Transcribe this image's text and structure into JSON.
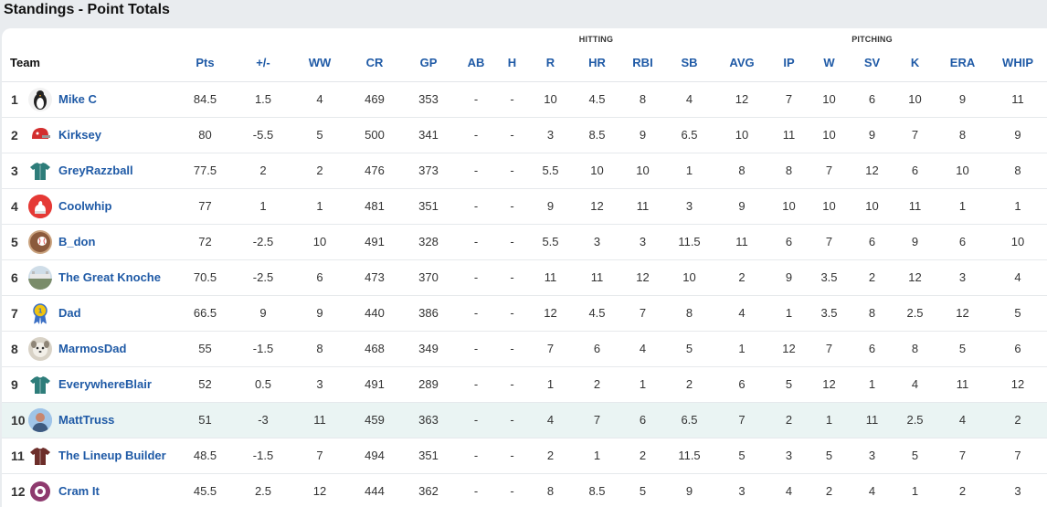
{
  "page": {
    "title": "Standings - Point Totals"
  },
  "groups": {
    "hitting": "HITTING",
    "pitching": "PITCHING"
  },
  "columns": [
    "Team",
    "Pts",
    "+/-",
    "WW",
    "CR",
    "GP",
    "AB",
    "H",
    "R",
    "HR",
    "RBI",
    "SB",
    "AVG",
    "IP",
    "W",
    "SV",
    "K",
    "ERA",
    "WHIP"
  ],
  "rows": [
    {
      "rank": "1",
      "team": "Mike C",
      "logo": "penguin-icon",
      "colors": [
        "#f2f2f2",
        "#222222"
      ],
      "pts": "84.5",
      "delta": "1.5",
      "dir": "pos",
      "ww": "4",
      "cr": "469",
      "gp": "353",
      "ab": "-",
      "h": "-",
      "r": "10",
      "hr": "4.5",
      "rbi": "8",
      "sb": "4",
      "avg": "12",
      "ip": "7",
      "w": "10",
      "sv": "6",
      "k": "10",
      "era": "9",
      "whip": "11"
    },
    {
      "rank": "2",
      "team": "Kirksey",
      "logo": "helmet-icon",
      "colors": [
        "#ffffff",
        "#d32f2f"
      ],
      "pts": "80",
      "delta": "-5.5",
      "dir": "neg",
      "ww": "5",
      "cr": "500",
      "gp": "341",
      "ab": "-",
      "h": "-",
      "r": "3",
      "hr": "8.5",
      "rbi": "9",
      "sb": "6.5",
      "avg": "10",
      "ip": "11",
      "w": "10",
      "sv": "9",
      "k": "7",
      "era": "8",
      "whip": "9"
    },
    {
      "rank": "3",
      "team": "GreyRazzball",
      "logo": "jersey-icon",
      "colors": [
        "#ffffff",
        "#2e7d7a"
      ],
      "pts": "77.5",
      "delta": "2",
      "dir": "pos",
      "ww": "2",
      "cr": "476",
      "gp": "373",
      "ab": "-",
      "h": "-",
      "r": "5.5",
      "hr": "10",
      "rbi": "10",
      "sb": "1",
      "avg": "8",
      "ip": "8",
      "w": "7",
      "sv": "12",
      "k": "6",
      "era": "10",
      "whip": "8"
    },
    {
      "rank": "4",
      "team": "Coolwhip",
      "logo": "whip-icon",
      "colors": [
        "#e53935",
        "#ffffff"
      ],
      "pts": "77",
      "delta": "1",
      "dir": "pos",
      "ww": "1",
      "cr": "481",
      "gp": "351",
      "ab": "-",
      "h": "-",
      "r": "9",
      "hr": "12",
      "rbi": "11",
      "sb": "3",
      "avg": "9",
      "ip": "10",
      "w": "10",
      "sv": "10",
      "k": "11",
      "era": "1",
      "whip": "1"
    },
    {
      "rank": "5",
      "team": "B_don",
      "logo": "baseball-glove-icon",
      "colors": [
        "#c9a27e",
        "#8b5a3c"
      ],
      "pts": "72",
      "delta": "-2.5",
      "dir": "neg",
      "ww": "10",
      "cr": "491",
      "gp": "328",
      "ab": "-",
      "h": "-",
      "r": "5.5",
      "hr": "3",
      "rbi": "3",
      "sb": "11.5",
      "avg": "11",
      "ip": "6",
      "w": "7",
      "sv": "6",
      "k": "9",
      "era": "6",
      "whip": "10"
    },
    {
      "rank": "6",
      "team": "The Great Knoche",
      "logo": "stadium-icon",
      "colors": [
        "#cfdde8",
        "#7a8c6a"
      ],
      "pts": "70.5",
      "delta": "-2.5",
      "dir": "neg",
      "ww": "6",
      "cr": "473",
      "gp": "370",
      "ab": "-",
      "h": "-",
      "r": "11",
      "hr": "11",
      "rbi": "12",
      "sb": "10",
      "avg": "2",
      "ip": "9",
      "w": "3.5",
      "sv": "2",
      "k": "12",
      "era": "3",
      "whip": "4"
    },
    {
      "rank": "7",
      "team": "Dad",
      "logo": "award-ribbon-icon",
      "colors": [
        "#ffffff",
        "#3b6fc4"
      ],
      "pts": "66.5",
      "delta": "9",
      "dir": "pos",
      "ww": "9",
      "cr": "440",
      "gp": "386",
      "ab": "-",
      "h": "-",
      "r": "12",
      "hr": "4.5",
      "rbi": "7",
      "sb": "8",
      "avg": "4",
      "ip": "1",
      "w": "3.5",
      "sv": "8",
      "k": "2.5",
      "era": "12",
      "whip": "5"
    },
    {
      "rank": "8",
      "team": "MarmosDad",
      "logo": "pet-photo-icon",
      "colors": [
        "#d8d2c6",
        "#8e8577"
      ],
      "pts": "55",
      "delta": "-1.5",
      "dir": "neg",
      "ww": "8",
      "cr": "468",
      "gp": "349",
      "ab": "-",
      "h": "-",
      "r": "7",
      "hr": "6",
      "rbi": "4",
      "sb": "5",
      "avg": "1",
      "ip": "12",
      "w": "7",
      "sv": "6",
      "k": "8",
      "era": "5",
      "whip": "6"
    },
    {
      "rank": "9",
      "team": "EverywhereBlair",
      "logo": "jersey-icon",
      "colors": [
        "#ffffff",
        "#2e7d7a"
      ],
      "pts": "52",
      "delta": "0.5",
      "dir": "pos",
      "ww": "3",
      "cr": "491",
      "gp": "289",
      "ab": "-",
      "h": "-",
      "r": "1",
      "hr": "2",
      "rbi": "1",
      "sb": "2",
      "avg": "6",
      "ip": "5",
      "w": "12",
      "sv": "1",
      "k": "4",
      "era": "11",
      "whip": "12"
    },
    {
      "rank": "10",
      "team": "MattTruss",
      "logo": "player-photo-icon",
      "colors": [
        "#9fc4e8",
        "#c8866f"
      ],
      "pts": "51",
      "delta": "-3",
      "dir": "neg",
      "ww": "11",
      "cr": "459",
      "gp": "363",
      "ab": "-",
      "h": "-",
      "r": "4",
      "hr": "7",
      "rbi": "6",
      "sb": "6.5",
      "avg": "7",
      "ip": "2",
      "w": "1",
      "sv": "11",
      "k": "2.5",
      "era": "4",
      "whip": "2"
    },
    {
      "rank": "11",
      "team": "The Lineup Builder",
      "logo": "jersey-icon",
      "colors": [
        "#ffffff",
        "#6d2e2a"
      ],
      "pts": "48.5",
      "delta": "-1.5",
      "dir": "neg",
      "ww": "7",
      "cr": "494",
      "gp": "351",
      "ab": "-",
      "h": "-",
      "r": "2",
      "hr": "1",
      "rbi": "2",
      "sb": "11.5",
      "avg": "5",
      "ip": "3",
      "w": "5",
      "sv": "3",
      "k": "5",
      "era": "7",
      "whip": "7"
    },
    {
      "rank": "12",
      "team": "Cram It",
      "logo": "candy-icon",
      "colors": [
        "#ffffff",
        "#8e3a6e"
      ],
      "pts": "45.5",
      "delta": "2.5",
      "dir": "pos",
      "ww": "12",
      "cr": "444",
      "gp": "362",
      "ab": "-",
      "h": "-",
      "r": "8",
      "hr": "8.5",
      "rbi": "5",
      "sb": "9",
      "avg": "3",
      "ip": "4",
      "w": "2",
      "sv": "4",
      "k": "1",
      "era": "2",
      "whip": "3"
    }
  ],
  "highlighted_row": "10"
}
